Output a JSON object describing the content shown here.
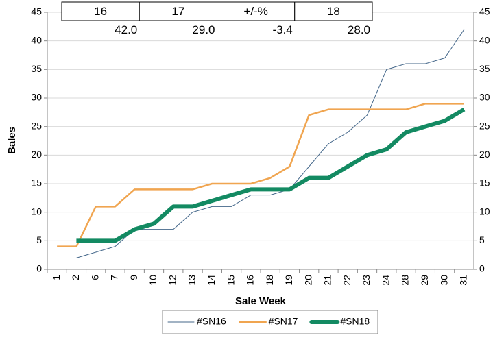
{
  "chart_data": {
    "type": "line",
    "y_label": "Bales",
    "x_label": "Sale Week",
    "categories": [
      "1",
      "2",
      "6",
      "7",
      "9",
      "10",
      "12",
      "13",
      "14",
      "15",
      "16",
      "18",
      "19",
      "20",
      "21",
      "22",
      "23",
      "24",
      "28",
      "29",
      "30",
      "31"
    ],
    "series": [
      {
        "name": "#SN16",
        "color": "#44678a",
        "width": 1,
        "values": [
          null,
          2,
          3,
          4,
          7,
          7,
          7,
          10,
          11,
          11,
          13,
          13,
          14,
          18,
          22,
          24,
          27,
          35,
          36,
          36,
          37,
          42
        ]
      },
      {
        "name": "#SN17",
        "color": "#f0a550",
        "width": 2.5,
        "values": [
          4,
          4,
          11,
          11,
          14,
          14,
          14,
          14,
          15,
          15,
          15,
          16,
          18,
          27,
          28,
          28,
          28,
          28,
          28,
          29,
          29,
          29
        ]
      },
      {
        "name": "#SN18",
        "color": "#138a62",
        "width": 6,
        "values": [
          null,
          5,
          5,
          5,
          7,
          8,
          11,
          11,
          12,
          13,
          14,
          14,
          14,
          16,
          16,
          18,
          20,
          21,
          24,
          25,
          26,
          28
        ]
      }
    ],
    "ylim": [
      0,
      45
    ],
    "yticks": [
      0,
      5,
      10,
      15,
      20,
      25,
      30,
      35,
      40,
      45
    ],
    "y2lim": [
      0,
      45
    ],
    "y2ticks": [
      0,
      5,
      10,
      15,
      20,
      25,
      30,
      35,
      40,
      45
    ],
    "grid": true,
    "legend": "bottom"
  },
  "table": {
    "header": [
      "16",
      "17",
      "+/-%",
      "18"
    ],
    "row": [
      "42.0",
      "29.0",
      "-3.4",
      "28.0"
    ],
    "negative_color": "#ff0000"
  }
}
